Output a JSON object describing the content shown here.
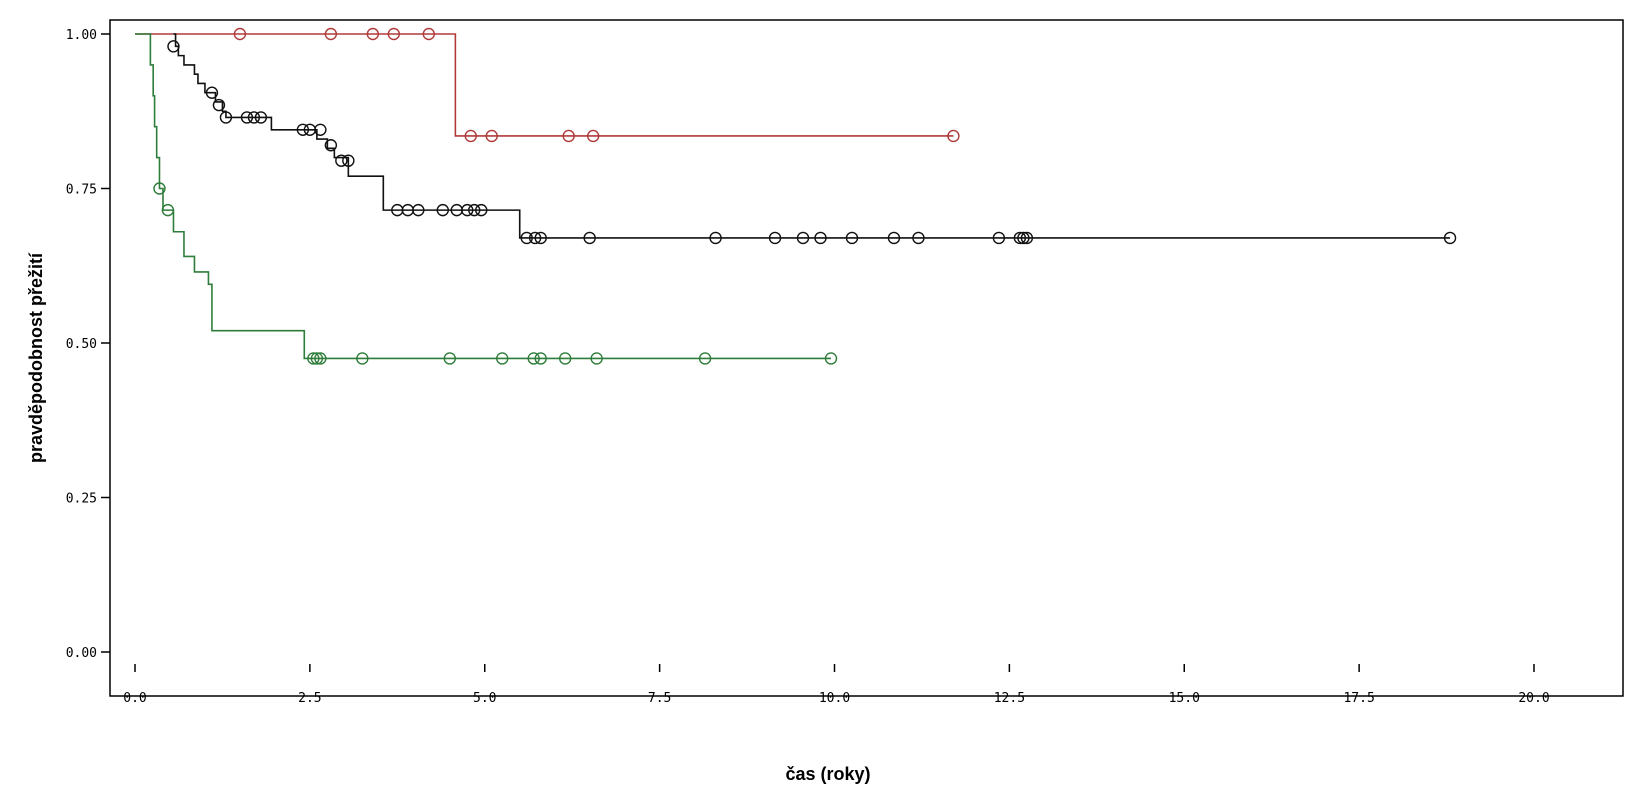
{
  "chart_data": {
    "type": "line",
    "subtype": "kaplan-meier",
    "title": "",
    "xlabel": "čas (roky)",
    "ylabel": "pravděpodobnost přežití",
    "xlim": [
      0,
      20
    ],
    "ylim": [
      0,
      1
    ],
    "x_ticks": [
      "0.0",
      "2.5",
      "5.0",
      "7.5",
      "10.0",
      "12.5",
      "15.0",
      "17.5",
      "20.0"
    ],
    "x_tick_values": [
      0,
      2.5,
      5,
      7.5,
      10,
      12.5,
      15,
      17.5,
      20
    ],
    "y_ticks": [
      "0.00",
      "0.25",
      "0.50",
      "0.75",
      "1.00"
    ],
    "y_tick_values": [
      0,
      0.25,
      0.5,
      0.75,
      1.0
    ],
    "grid": false,
    "legend": "none",
    "series": [
      {
        "color": "#b03a3a",
        "steps": [
          [
            0,
            1.0
          ],
          [
            4.58,
            0.835
          ],
          [
            11.7,
            0.835
          ]
        ],
        "censored": [
          [
            1.5,
            1.0
          ],
          [
            2.8,
            1.0
          ],
          [
            3.4,
            1.0
          ],
          [
            3.7,
            1.0
          ],
          [
            4.2,
            1.0
          ],
          [
            4.8,
            0.835
          ],
          [
            5.1,
            0.835
          ],
          [
            6.2,
            0.835
          ],
          [
            6.55,
            0.835
          ],
          [
            11.7,
            0.835
          ]
        ]
      },
      {
        "color": "#111111",
        "steps": [
          [
            0.55,
            1.0
          ],
          [
            0.58,
            0.98
          ],
          [
            0.62,
            0.965
          ],
          [
            0.7,
            0.95
          ],
          [
            0.85,
            0.935
          ],
          [
            0.9,
            0.92
          ],
          [
            1.0,
            0.905
          ],
          [
            1.15,
            0.89
          ],
          [
            1.25,
            0.875
          ],
          [
            1.3,
            0.865
          ],
          [
            1.95,
            0.845
          ],
          [
            2.6,
            0.83
          ],
          [
            2.75,
            0.815
          ],
          [
            2.85,
            0.8
          ],
          [
            3.05,
            0.77
          ],
          [
            3.55,
            0.715
          ],
          [
            5.5,
            0.67
          ],
          [
            18.8,
            0.67
          ]
        ],
        "censored": [
          [
            0.55,
            0.98
          ],
          [
            1.1,
            0.905
          ],
          [
            1.2,
            0.885
          ],
          [
            1.3,
            0.865
          ],
          [
            1.6,
            0.865
          ],
          [
            1.7,
            0.865
          ],
          [
            1.8,
            0.865
          ],
          [
            2.4,
            0.845
          ],
          [
            2.5,
            0.845
          ],
          [
            2.65,
            0.845
          ],
          [
            2.8,
            0.82
          ],
          [
            2.95,
            0.795
          ],
          [
            3.05,
            0.795
          ],
          [
            3.75,
            0.715
          ],
          [
            3.9,
            0.715
          ],
          [
            4.05,
            0.715
          ],
          [
            4.4,
            0.715
          ],
          [
            4.6,
            0.715
          ],
          [
            4.75,
            0.715
          ],
          [
            4.85,
            0.715
          ],
          [
            4.95,
            0.715
          ],
          [
            5.6,
            0.67
          ],
          [
            5.72,
            0.67
          ],
          [
            5.8,
            0.67
          ],
          [
            6.5,
            0.67
          ],
          [
            8.3,
            0.67
          ],
          [
            9.15,
            0.67
          ],
          [
            9.55,
            0.67
          ],
          [
            9.8,
            0.67
          ],
          [
            10.25,
            0.67
          ],
          [
            10.85,
            0.67
          ],
          [
            11.2,
            0.67
          ],
          [
            12.35,
            0.67
          ],
          [
            12.65,
            0.67
          ],
          [
            12.7,
            0.67
          ],
          [
            12.75,
            0.67
          ],
          [
            18.8,
            0.67
          ]
        ]
      },
      {
        "color": "#2e7d3a",
        "steps": [
          [
            0,
            1.0
          ],
          [
            0.22,
            0.95
          ],
          [
            0.26,
            0.9
          ],
          [
            0.28,
            0.85
          ],
          [
            0.31,
            0.8
          ],
          [
            0.35,
            0.75
          ],
          [
            0.4,
            0.715
          ],
          [
            0.55,
            0.68
          ],
          [
            0.7,
            0.64
          ],
          [
            0.85,
            0.615
          ],
          [
            1.05,
            0.595
          ],
          [
            1.1,
            0.52
          ],
          [
            2.42,
            0.475
          ],
          [
            9.95,
            0.475
          ]
        ],
        "censored": [
          [
            0.35,
            0.75
          ],
          [
            0.47,
            0.715
          ],
          [
            2.55,
            0.475
          ],
          [
            2.6,
            0.475
          ],
          [
            2.65,
            0.475
          ],
          [
            3.25,
            0.475
          ],
          [
            4.5,
            0.475
          ],
          [
            5.25,
            0.475
          ],
          [
            5.7,
            0.475
          ],
          [
            5.8,
            0.475
          ],
          [
            6.15,
            0.475
          ],
          [
            6.6,
            0.475
          ],
          [
            8.15,
            0.475
          ],
          [
            9.95,
            0.475
          ]
        ]
      }
    ]
  }
}
